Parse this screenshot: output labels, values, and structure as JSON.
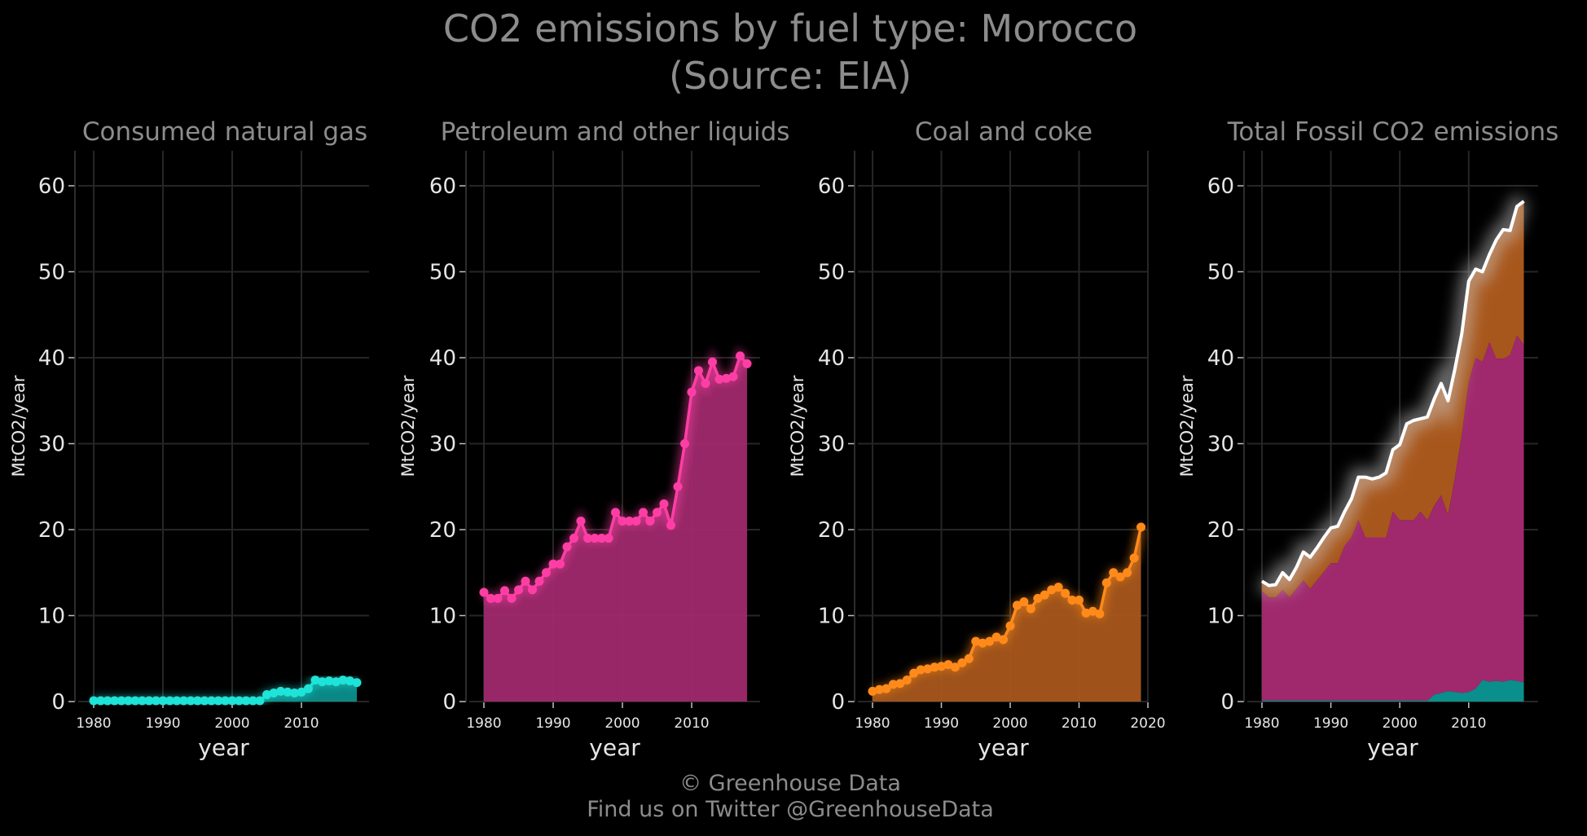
{
  "title": {
    "line1": "CO2 emissions by fuel type: Morocco",
    "line2": "(Source: EIA)"
  },
  "footer": {
    "line1": "© Greenhouse Data",
    "line2": "Find us on Twitter @GreenhouseData"
  },
  "colors": {
    "background": "#000000",
    "gas": "#1ee3d8",
    "gas_fill": "#0b8f8c",
    "petroleum": "#ff3ea5",
    "petroleum_fill": "#a0296d",
    "coal": "#ff8a1a",
    "coal_fill": "#a8571c",
    "total_line": "#ffffff"
  },
  "chart_data": [
    {
      "type": "area",
      "title": "Consumed natural gas",
      "xlabel": "year",
      "ylabel": "MtCO2/year",
      "ylim": [
        0,
        63
      ],
      "yticks": [
        0,
        10,
        20,
        30,
        40,
        50,
        60
      ],
      "xticks": [
        1980,
        1990,
        2000,
        2010
      ],
      "grid": true,
      "series": [
        {
          "x": [
            1980,
            1981,
            1982,
            1983,
            1984,
            1985,
            1986,
            1987,
            1988,
            1989,
            1990,
            1991,
            1992,
            1993,
            1994,
            1995,
            1996,
            1997,
            1998,
            1999,
            2000,
            2001,
            2002,
            2003,
            2004,
            2005,
            2006,
            2007,
            2008,
            2009,
            2010,
            2011,
            2012,
            2013,
            2014,
            2015,
            2016,
            2017,
            2018
          ],
          "values": [
            0.1,
            0.1,
            0.1,
            0.1,
            0.1,
            0.1,
            0.1,
            0.1,
            0.1,
            0.1,
            0.1,
            0.1,
            0.1,
            0.1,
            0.1,
            0.1,
            0.1,
            0.1,
            0.1,
            0.1,
            0.1,
            0.1,
            0.1,
            0.1,
            0.1,
            0.8,
            1.0,
            1.2,
            1.1,
            1.0,
            1.1,
            1.5,
            2.5,
            2.3,
            2.4,
            2.3,
            2.5,
            2.4,
            2.2
          ]
        }
      ]
    },
    {
      "type": "area",
      "title": "Petroleum and other liquids",
      "xlabel": "year",
      "ylabel": "MtCO2/year",
      "ylim": [
        0,
        63
      ],
      "yticks": [
        0,
        10,
        20,
        30,
        40,
        50,
        60
      ],
      "xticks": [
        1980,
        1990,
        2000,
        2010
      ],
      "grid": true,
      "series": [
        {
          "x": [
            1980,
            1981,
            1982,
            1983,
            1984,
            1985,
            1986,
            1987,
            1988,
            1989,
            1990,
            1991,
            1992,
            1993,
            1994,
            1995,
            1996,
            1997,
            1998,
            1999,
            2000,
            2001,
            2002,
            2003,
            2004,
            2005,
            2006,
            2007,
            2008,
            2009,
            2010,
            2011,
            2012,
            2013,
            2014,
            2015,
            2016,
            2017,
            2018
          ],
          "values": [
            12.7,
            12.0,
            12.0,
            12.9,
            12.0,
            13.0,
            14.0,
            13.0,
            14.0,
            15.0,
            16.0,
            16.0,
            18.0,
            19.0,
            21.0,
            19.0,
            19.0,
            19.0,
            19.0,
            22.0,
            21.0,
            21.0,
            21.0,
            22.0,
            21.0,
            22.0,
            23.0,
            20.5,
            25.0,
            30.0,
            36.0,
            38.5,
            37.0,
            39.5,
            37.5,
            37.6,
            37.8,
            40.2,
            39.3
          ]
        }
      ]
    },
    {
      "type": "area",
      "title": "Coal and coke",
      "xlabel": "year",
      "ylabel": "MtCO2/year",
      "ylim": [
        0,
        63
      ],
      "yticks": [
        0,
        10,
        20,
        30,
        40,
        50,
        60
      ],
      "xticks": [
        1980,
        1990,
        2000,
        2010,
        2020
      ],
      "grid": true,
      "series": [
        {
          "x": [
            1980,
            1981,
            1982,
            1983,
            1984,
            1985,
            1986,
            1987,
            1988,
            1989,
            1990,
            1991,
            1992,
            1993,
            1994,
            1995,
            1996,
            1997,
            1998,
            1999,
            2000,
            2001,
            2002,
            2003,
            2004,
            2005,
            2006,
            2007,
            2008,
            2009,
            2010,
            2011,
            2012,
            2013,
            2014,
            2015,
            2016,
            2017,
            2018,
            2019
          ],
          "values": [
            1.2,
            1.4,
            1.5,
            2.0,
            2.1,
            2.5,
            3.3,
            3.7,
            3.8,
            4.0,
            4.1,
            4.3,
            4.0,
            4.5,
            5.0,
            7.0,
            6.8,
            7.0,
            7.5,
            7.2,
            8.8,
            11.2,
            11.6,
            10.8,
            12.0,
            12.4,
            13.0,
            13.3,
            12.6,
            11.8,
            11.8,
            10.3,
            10.5,
            10.2,
            13.8,
            15.0,
            14.5,
            15.0,
            16.7,
            20.3
          ]
        }
      ]
    },
    {
      "type": "area",
      "title": "Total Fossil CO2 emissions",
      "xlabel": "year",
      "ylabel": "MtCO2/year",
      "ylim": [
        0,
        63
      ],
      "yticks": [
        0,
        10,
        20,
        30,
        40,
        50,
        60
      ],
      "xticks": [
        1980,
        1990,
        2000,
        2010
      ],
      "grid": true,
      "stacked": true,
      "x": [
        1980,
        1981,
        1982,
        1983,
        1984,
        1985,
        1986,
        1987,
        1988,
        1989,
        1990,
        1991,
        1992,
        1993,
        1994,
        1995,
        1996,
        1997,
        1998,
        1999,
        2000,
        2001,
        2002,
        2003,
        2004,
        2005,
        2006,
        2007,
        2008,
        2009,
        2010,
        2011,
        2012,
        2013,
        2014,
        2015,
        2016,
        2017,
        2018
      ],
      "series": [
        {
          "values": [
            0.1,
            0.1,
            0.1,
            0.1,
            0.1,
            0.1,
            0.1,
            0.1,
            0.1,
            0.1,
            0.1,
            0.1,
            0.1,
            0.1,
            0.1,
            0.1,
            0.1,
            0.1,
            0.1,
            0.1,
            0.1,
            0.1,
            0.1,
            0.1,
            0.1,
            0.8,
            1.0,
            1.2,
            1.1,
            1.0,
            1.1,
            1.5,
            2.5,
            2.3,
            2.4,
            2.3,
            2.5,
            2.4,
            2.2
          ]
        },
        {
          "values": [
            12.7,
            12.0,
            12.0,
            12.9,
            12.0,
            13.0,
            14.0,
            13.0,
            14.0,
            15.0,
            16.0,
            16.0,
            18.0,
            19.0,
            21.0,
            19.0,
            19.0,
            19.0,
            19.0,
            22.0,
            21.0,
            21.0,
            21.0,
            22.0,
            21.0,
            22.0,
            23.0,
            20.5,
            25.0,
            30.0,
            36.0,
            38.5,
            37.0,
            39.5,
            37.5,
            37.6,
            37.8,
            40.2,
            39.3
          ]
        },
        {
          "values": [
            1.2,
            1.4,
            1.5,
            2.0,
            2.1,
            2.5,
            3.3,
            3.7,
            3.8,
            4.0,
            4.1,
            4.3,
            4.0,
            4.5,
            5.0,
            7.0,
            6.8,
            7.0,
            7.5,
            7.2,
            8.8,
            11.2,
            11.6,
            10.8,
            12.0,
            12.4,
            13.0,
            13.3,
            12.6,
            11.8,
            11.8,
            10.3,
            10.5,
            10.2,
            13.8,
            15.0,
            14.5,
            15.0,
            16.7
          ]
        }
      ]
    }
  ]
}
